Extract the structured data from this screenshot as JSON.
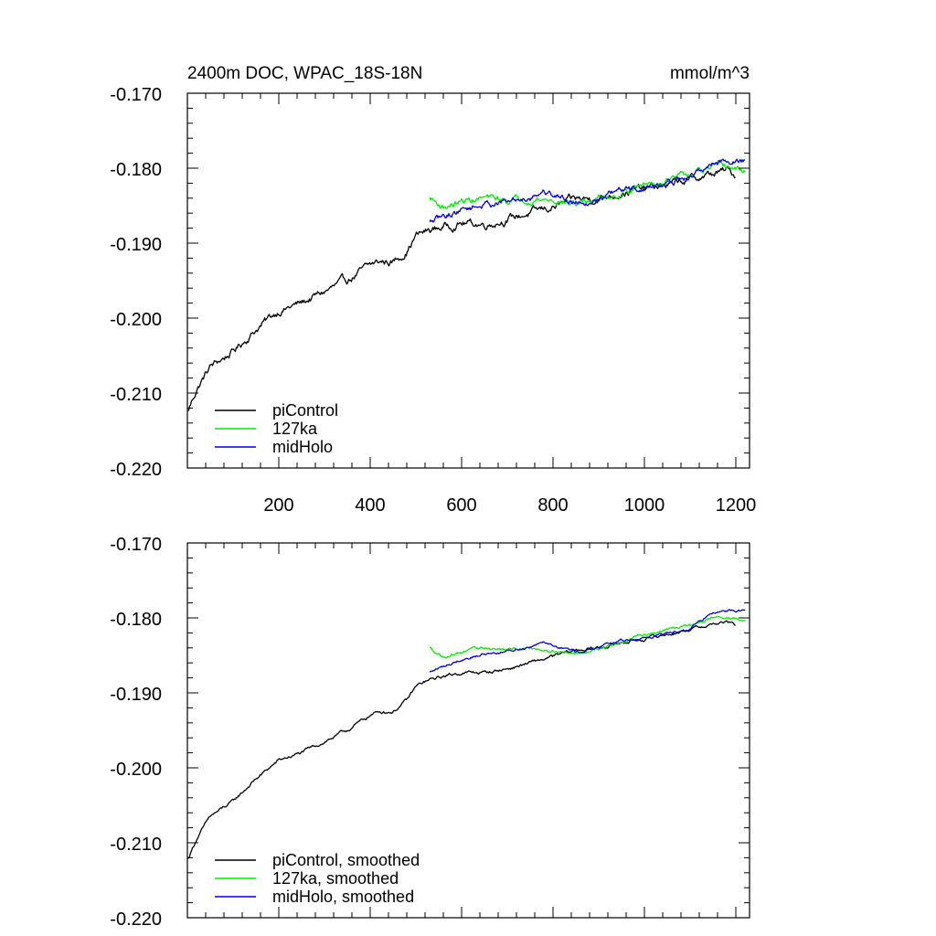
{
  "chart_data": [
    {
      "type": "line",
      "title": "2400m DOC, WPAC_18S-18N",
      "units": "mmol/m^3",
      "xlim": [
        0,
        1230
      ],
      "ylim": [
        -0.22,
        -0.17
      ],
      "x_ticks": [
        200,
        400,
        600,
        800,
        1000,
        1200
      ],
      "x_tick_labels": [
        "200",
        "400",
        "600",
        "800",
        "1000",
        "1200"
      ],
      "y_ticks": [
        -0.22,
        -0.21,
        -0.2,
        -0.19,
        -0.18,
        -0.17
      ],
      "y_tick_labels": [
        "-0.220",
        "-0.210",
        "-0.200",
        "-0.190",
        "-0.180",
        "-0.170"
      ],
      "legend_position": "lower-left",
      "series": [
        {
          "name": "piControl",
          "color": "#000000",
          "noise": 0.0007,
          "x": [
            1,
            20,
            50,
            100,
            150,
            200,
            250,
            300,
            350,
            400,
            420,
            450,
            480,
            500,
            520,
            560,
            600,
            650,
            700,
            750,
            800,
            850,
            900,
            950,
            1000,
            1050,
            1100,
            1150,
            1180,
            1200
          ],
          "y": [
            -0.2125,
            -0.2095,
            -0.2065,
            -0.2045,
            -0.2015,
            -0.199,
            -0.198,
            -0.1965,
            -0.195,
            -0.193,
            -0.1925,
            -0.1925,
            -0.191,
            -0.189,
            -0.1885,
            -0.1878,
            -0.1873,
            -0.1875,
            -0.1868,
            -0.186,
            -0.1852,
            -0.1842,
            -0.184,
            -0.1832,
            -0.1828,
            -0.1822,
            -0.1815,
            -0.1808,
            -0.1803,
            -0.181
          ]
        },
        {
          "name": "127ka",
          "color": "#00ee00",
          "noise": 0.0006,
          "x": [
            530,
            560,
            600,
            650,
            700,
            750,
            800,
            850,
            900,
            950,
            1000,
            1050,
            1100,
            1150,
            1180,
            1220
          ],
          "y": [
            -0.184,
            -0.1852,
            -0.1845,
            -0.184,
            -0.1843,
            -0.184,
            -0.1843,
            -0.1848,
            -0.184,
            -0.1833,
            -0.1822,
            -0.1815,
            -0.181,
            -0.18,
            -0.1798,
            -0.1805
          ]
        },
        {
          "name": "midHolo",
          "color": "#0000ee",
          "noise": 0.0006,
          "x": [
            530,
            560,
            600,
            650,
            700,
            750,
            780,
            800,
            850,
            900,
            950,
            1000,
            1050,
            1100,
            1130,
            1150,
            1180,
            1220
          ],
          "y": [
            -0.1873,
            -0.1865,
            -0.1855,
            -0.1848,
            -0.1845,
            -0.1838,
            -0.183,
            -0.1835,
            -0.1845,
            -0.184,
            -0.183,
            -0.1827,
            -0.182,
            -0.1813,
            -0.18,
            -0.1793,
            -0.179,
            -0.179
          ]
        }
      ]
    },
    {
      "type": "line",
      "title": "",
      "units": "",
      "xlim": [
        0,
        1230
      ],
      "ylim": [
        -0.22,
        -0.17
      ],
      "x_ticks": [
        200,
        400,
        600,
        800,
        1000,
        1200
      ],
      "x_tick_labels": [],
      "y_ticks": [
        -0.22,
        -0.21,
        -0.2,
        -0.19,
        -0.18,
        -0.17
      ],
      "y_tick_labels": [
        "-0.220",
        "-0.210",
        "-0.200",
        "-0.190",
        "-0.180",
        "-0.170"
      ],
      "legend_position": "lower-left",
      "series": [
        {
          "name": "piControl, smoothed",
          "color": "#000000",
          "noise": 0.0003,
          "x": [
            1,
            20,
            50,
            100,
            150,
            200,
            250,
            300,
            350,
            400,
            420,
            450,
            480,
            500,
            520,
            560,
            600,
            650,
            700,
            750,
            800,
            850,
            900,
            950,
            1000,
            1050,
            1100,
            1150,
            1180,
            1200
          ],
          "y": [
            -0.2122,
            -0.2095,
            -0.2065,
            -0.2045,
            -0.2015,
            -0.199,
            -0.198,
            -0.1965,
            -0.195,
            -0.193,
            -0.1925,
            -0.1925,
            -0.191,
            -0.1892,
            -0.1885,
            -0.1878,
            -0.1873,
            -0.1873,
            -0.1868,
            -0.186,
            -0.1852,
            -0.1843,
            -0.184,
            -0.1833,
            -0.1828,
            -0.1822,
            -0.1815,
            -0.1808,
            -0.1806,
            -0.181
          ]
        },
        {
          "name": "127ka, smoothed",
          "color": "#00ee00",
          "noise": 0.00025,
          "x": [
            530,
            560,
            600,
            650,
            700,
            750,
            800,
            850,
            900,
            950,
            1000,
            1050,
            1100,
            1150,
            1180,
            1220
          ],
          "y": [
            -0.184,
            -0.1852,
            -0.1845,
            -0.184,
            -0.1843,
            -0.184,
            -0.1843,
            -0.1848,
            -0.184,
            -0.1833,
            -0.1822,
            -0.1815,
            -0.181,
            -0.18,
            -0.1798,
            -0.1805
          ]
        },
        {
          "name": "midHolo, smoothed",
          "color": "#0000ee",
          "noise": 0.00025,
          "x": [
            530,
            560,
            600,
            650,
            700,
            750,
            780,
            800,
            850,
            900,
            950,
            1000,
            1050,
            1100,
            1130,
            1150,
            1180,
            1220
          ],
          "y": [
            -0.1873,
            -0.1865,
            -0.1855,
            -0.1848,
            -0.1845,
            -0.1838,
            -0.183,
            -0.1835,
            -0.1845,
            -0.184,
            -0.183,
            -0.1827,
            -0.182,
            -0.1813,
            -0.18,
            -0.1793,
            -0.179,
            -0.179
          ]
        }
      ]
    }
  ]
}
